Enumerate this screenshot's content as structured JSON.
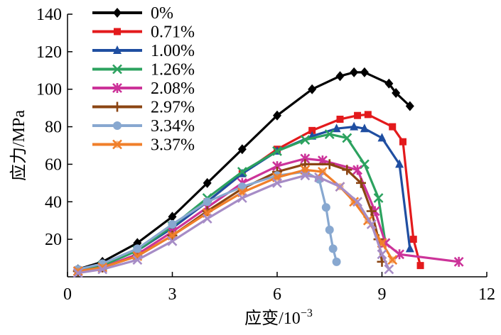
{
  "chart_data": {
    "type": "line",
    "title": "",
    "xlabel": "应变/10",
    "xlabel_exponent": "−3",
    "ylabel": "应力/MPa",
    "xlim": [
      0,
      12
    ],
    "ylim": [
      0,
      140
    ],
    "xticks": [
      0,
      3,
      6,
      9,
      12
    ],
    "yticks": [
      20,
      40,
      60,
      80,
      100,
      120,
      140
    ],
    "x_tick_labels": [
      "0",
      "3",
      "6",
      "9",
      "12"
    ],
    "y_tick_labels": [
      "20",
      "40",
      "60",
      "80",
      "100",
      "120",
      "140"
    ],
    "grid": false,
    "legend_position": "top-left",
    "series": [
      {
        "name": "0%",
        "color": "#000000",
        "marker": "diamond",
        "points": [
          [
            0.3,
            4
          ],
          [
            1,
            8
          ],
          [
            2,
            18
          ],
          [
            3,
            32
          ],
          [
            4,
            50
          ],
          [
            5,
            68
          ],
          [
            6,
            86
          ],
          [
            7,
            100
          ],
          [
            7.8,
            107
          ],
          [
            8.2,
            109
          ],
          [
            8.5,
            109
          ],
          [
            9.2,
            103
          ],
          [
            9.4,
            98
          ],
          [
            9.8,
            91
          ]
        ]
      },
      {
        "name": "0.71%",
        "color": "#e31a1c",
        "marker": "square",
        "points": [
          [
            0.3,
            3
          ],
          [
            1,
            6
          ],
          [
            2,
            14
          ],
          [
            3,
            26
          ],
          [
            4,
            40
          ],
          [
            5,
            55
          ],
          [
            6,
            68
          ],
          [
            7,
            78
          ],
          [
            7.8,
            84
          ],
          [
            8.3,
            86
          ],
          [
            8.6,
            86.5
          ],
          [
            9.3,
            80
          ],
          [
            9.6,
            72
          ],
          [
            9.9,
            20
          ],
          [
            10.1,
            6
          ]
        ]
      },
      {
        "name": "1.00%",
        "color": "#1f4ea1",
        "marker": "triangle",
        "points": [
          [
            0.3,
            3
          ],
          [
            1,
            6
          ],
          [
            2,
            14
          ],
          [
            3,
            26
          ],
          [
            4,
            40
          ],
          [
            5,
            55
          ],
          [
            6,
            67
          ],
          [
            7,
            75
          ],
          [
            7.7,
            79
          ],
          [
            8.2,
            80
          ],
          [
            8.5,
            79
          ],
          [
            9,
            74
          ],
          [
            9.5,
            60
          ],
          [
            9.8,
            15
          ]
        ]
      },
      {
        "name": "1.26%",
        "color": "#2ca25f",
        "marker": "x",
        "points": [
          [
            0.3,
            3
          ],
          [
            1,
            6
          ],
          [
            2,
            14
          ],
          [
            3,
            27
          ],
          [
            4,
            42
          ],
          [
            5,
            56
          ],
          [
            6,
            67
          ],
          [
            6.8,
            73
          ],
          [
            7.5,
            76
          ],
          [
            8,
            74
          ],
          [
            8.5,
            60
          ],
          [
            8.9,
            42
          ],
          [
            9.1,
            18
          ]
        ]
      },
      {
        "name": "2.08%",
        "color": "#cc3399",
        "marker": "star",
        "points": [
          [
            0.3,
            3
          ],
          [
            1,
            5
          ],
          [
            2,
            12
          ],
          [
            3,
            24
          ],
          [
            4,
            37
          ],
          [
            5,
            50
          ],
          [
            6,
            59
          ],
          [
            6.8,
            63
          ],
          [
            7.3,
            62
          ],
          [
            8.3,
            57
          ],
          [
            8.8,
            35
          ],
          [
            9.1,
            18
          ],
          [
            9.5,
            12
          ],
          [
            11.2,
            8
          ]
        ]
      },
      {
        "name": "2.97%",
        "color": "#8b4513",
        "marker": "plus",
        "points": [
          [
            0.3,
            3
          ],
          [
            1,
            5
          ],
          [
            2,
            11
          ],
          [
            3,
            22
          ],
          [
            4,
            35
          ],
          [
            5,
            47
          ],
          [
            6,
            56
          ],
          [
            6.8,
            60
          ],
          [
            7.5,
            60
          ],
          [
            8,
            57
          ],
          [
            8.4,
            50
          ],
          [
            8.7,
            35
          ],
          [
            8.9,
            20
          ],
          [
            9,
            8
          ]
        ]
      },
      {
        "name": "3.34%",
        "color": "#88a8d0",
        "marker": "circle",
        "points": [
          [
            0.3,
            4
          ],
          [
            1,
            7
          ],
          [
            2,
            15
          ],
          [
            3,
            28
          ],
          [
            4,
            40
          ],
          [
            5,
            48
          ],
          [
            6,
            54
          ],
          [
            6.8,
            56
          ],
          [
            7.2,
            52
          ],
          [
            7.4,
            37
          ],
          [
            7.5,
            25
          ],
          [
            7.6,
            15
          ],
          [
            7.7,
            8
          ]
        ]
      },
      {
        "name": "3.37%",
        "color": "#f07f2a",
        "marker": "x-circle",
        "points": [
          [
            0.3,
            3
          ],
          [
            1,
            5
          ],
          [
            2,
            11
          ],
          [
            3,
            22
          ],
          [
            4,
            34
          ],
          [
            5,
            45
          ],
          [
            6,
            53
          ],
          [
            6.8,
            57
          ],
          [
            7.3,
            56
          ],
          [
            7.8,
            48
          ],
          [
            8.2,
            40
          ],
          [
            8.6,
            30
          ],
          [
            9,
            18
          ],
          [
            9.3,
            9
          ]
        ]
      },
      {
        "name": "",
        "color": "#a68cc6",
        "marker": "x",
        "points": [
          [
            0.3,
            2
          ],
          [
            1,
            4
          ],
          [
            2,
            9
          ],
          [
            3,
            19
          ],
          [
            4,
            31
          ],
          [
            5,
            42
          ],
          [
            6,
            50
          ],
          [
            6.8,
            54
          ],
          [
            7.2,
            53
          ],
          [
            7.8,
            48
          ],
          [
            8.3,
            40
          ],
          [
            8.7,
            28
          ],
          [
            9,
            12
          ],
          [
            9.2,
            4
          ]
        ]
      }
    ]
  }
}
